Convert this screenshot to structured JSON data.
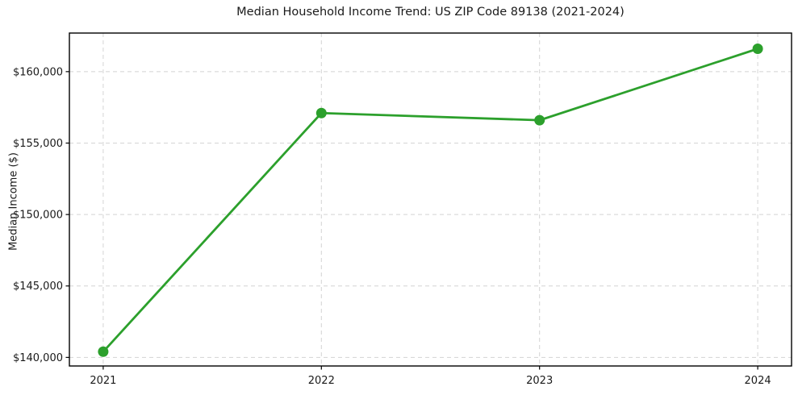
{
  "chart_data": {
    "type": "line",
    "title": "Median Household Income Trend: US ZIP Code 89138 (2021-2024)",
    "xlabel": "",
    "ylabel": "Median Income ($)",
    "x": [
      2021,
      2022,
      2023,
      2024
    ],
    "x_tick_labels": [
      "2021",
      "2022",
      "2023",
      "2024"
    ],
    "series": [
      {
        "name": "Median Household Income",
        "values": [
          140400,
          157100,
          156600,
          161600
        ],
        "color": "#2ca02c",
        "marker": "o",
        "line_width": 2.8,
        "marker_radius": 6.5
      }
    ],
    "y_ticks": [
      140000,
      145000,
      150000,
      155000,
      160000
    ],
    "y_tick_labels": [
      "$140,000",
      "$145,000",
      "$150,000",
      "$155,000",
      "$160,000"
    ],
    "xlim": [
      2020.845,
      2024.155
    ],
    "ylim": [
      139400,
      162700
    ],
    "grid": true,
    "grid_style": "dashed",
    "grid_color": "#d4d4d4",
    "legend_position": "none",
    "plot_background": "#ffffff",
    "text_color": "#1a1a1a",
    "spine_color": "#000000"
  }
}
